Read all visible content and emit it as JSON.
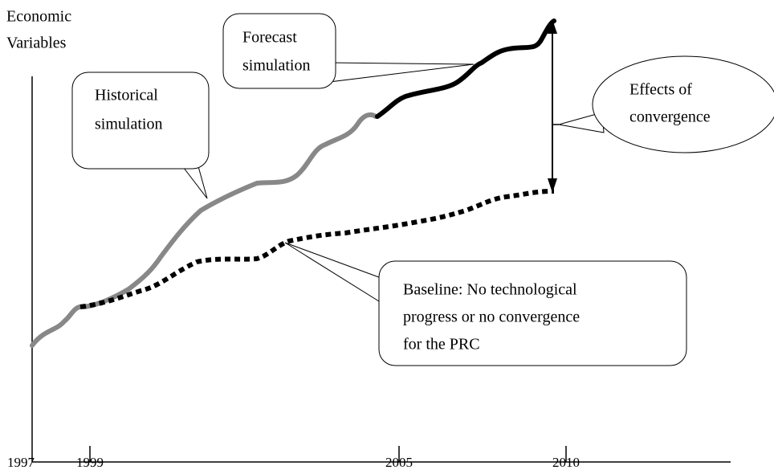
{
  "axis": {
    "y_label": [
      "Economic",
      "Variables"
    ],
    "x_ticks": [
      "1997",
      "1999",
      "2005",
      "2010"
    ]
  },
  "callouts": {
    "forecast": [
      "Forecast",
      "simulation"
    ],
    "historical": [
      "Historical",
      "simulation"
    ],
    "effects": [
      "Effects of",
      "convergence"
    ],
    "baseline": [
      "Baseline: No technological",
      "progress or no convergence",
      "for the PRC"
    ]
  }
}
